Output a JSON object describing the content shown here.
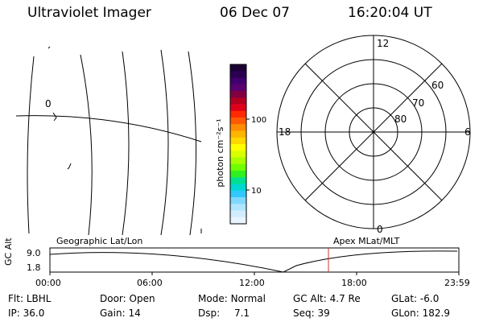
{
  "header": {
    "instrument": "Ultraviolet Imager",
    "date": "06 Dec 07",
    "time": "16:20:04 UT"
  },
  "geo_map": {
    "grid_label": "0"
  },
  "colorbar": {
    "unit_label": "photon cm⁻²s⁻¹",
    "ticks": [
      "100",
      "10"
    ],
    "colors": [
      "#1a0033",
      "#2b0050",
      "#3f006d",
      "#5a0070",
      "#800040",
      "#b30020",
      "#e0001a",
      "#ff2a00",
      "#ff5a00",
      "#ff8c00",
      "#ffb400",
      "#ffd800",
      "#ffff00",
      "#d8ff00",
      "#a8ff00",
      "#70ff00",
      "#30f020",
      "#00e090",
      "#00d8d0",
      "#30c8ff",
      "#80d8ff",
      "#b0e4ff",
      "#d0ecff",
      "#e8f4ff"
    ]
  },
  "polar_plot": {
    "mlt_labels": {
      "top": "12",
      "left": "18",
      "right": "6",
      "bottom": "0"
    },
    "lat_labels": [
      "60",
      "70",
      "80"
    ]
  },
  "timeline": {
    "left_label": "Geographic Lat/Lon",
    "right_label": "Apex MLat/MLT",
    "y_axis_label": "GC Alt",
    "y_ticks": [
      "9.0",
      "1.8"
    ],
    "x_ticks": [
      "00:00",
      "06:00",
      "12:00",
      "18:00",
      "23:59"
    ],
    "marker_color": "#d03030"
  },
  "info": {
    "row1": [
      {
        "label": "Flt:",
        "value": "LBHL"
      },
      {
        "label": "Door:",
        "value": "Open"
      },
      {
        "label": "Mode:",
        "value": "Normal"
      },
      {
        "label": "GC Alt:",
        "value": "4.7 Re"
      },
      {
        "label": "GLat:",
        "value": "-6.0"
      }
    ],
    "row2": [
      {
        "label": "IP:",
        "value": "36.0"
      },
      {
        "label": "Gain:",
        "value": "14"
      },
      {
        "label": "Dsp:",
        "value": "7.1"
      },
      {
        "label": "Seq:",
        "value": "39"
      },
      {
        "label": "GLon:",
        "value": "182.9"
      }
    ]
  }
}
